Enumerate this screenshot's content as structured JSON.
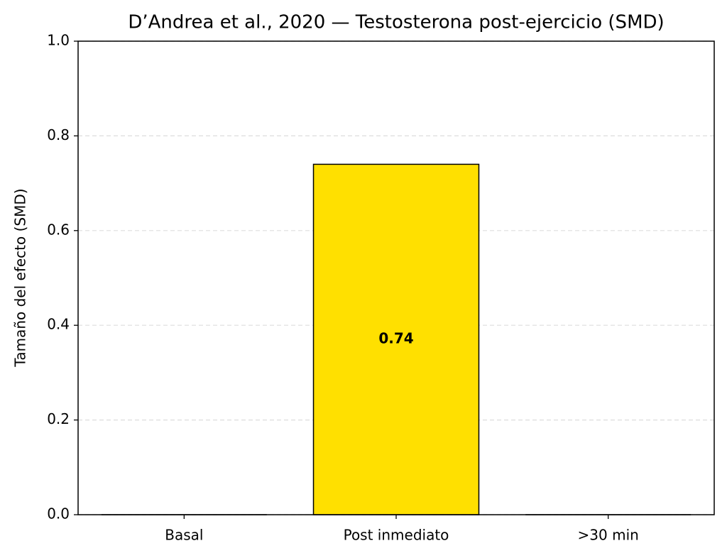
{
  "chart_data": {
    "type": "bar",
    "title": "D’Andrea et al., 2020 — Testosterona post-ejercicio (SMD)",
    "y_label": "Tamaño del efecto (SMD)",
    "categories": [
      "Basal",
      "Post inmediato",
      ">30 min"
    ],
    "values": [
      0,
      0.74,
      0
    ],
    "value_labels": [
      null,
      "0.74",
      null
    ],
    "color": "#ffe000",
    "ylim": [
      0,
      1
    ],
    "yticks": [
      {
        "value": 0,
        "label": "0.0"
      },
      0.2,
      0.4,
      0.6,
      0.8,
      {
        "value": 1,
        "label": "1.0"
      }
    ],
    "grid": true
  }
}
